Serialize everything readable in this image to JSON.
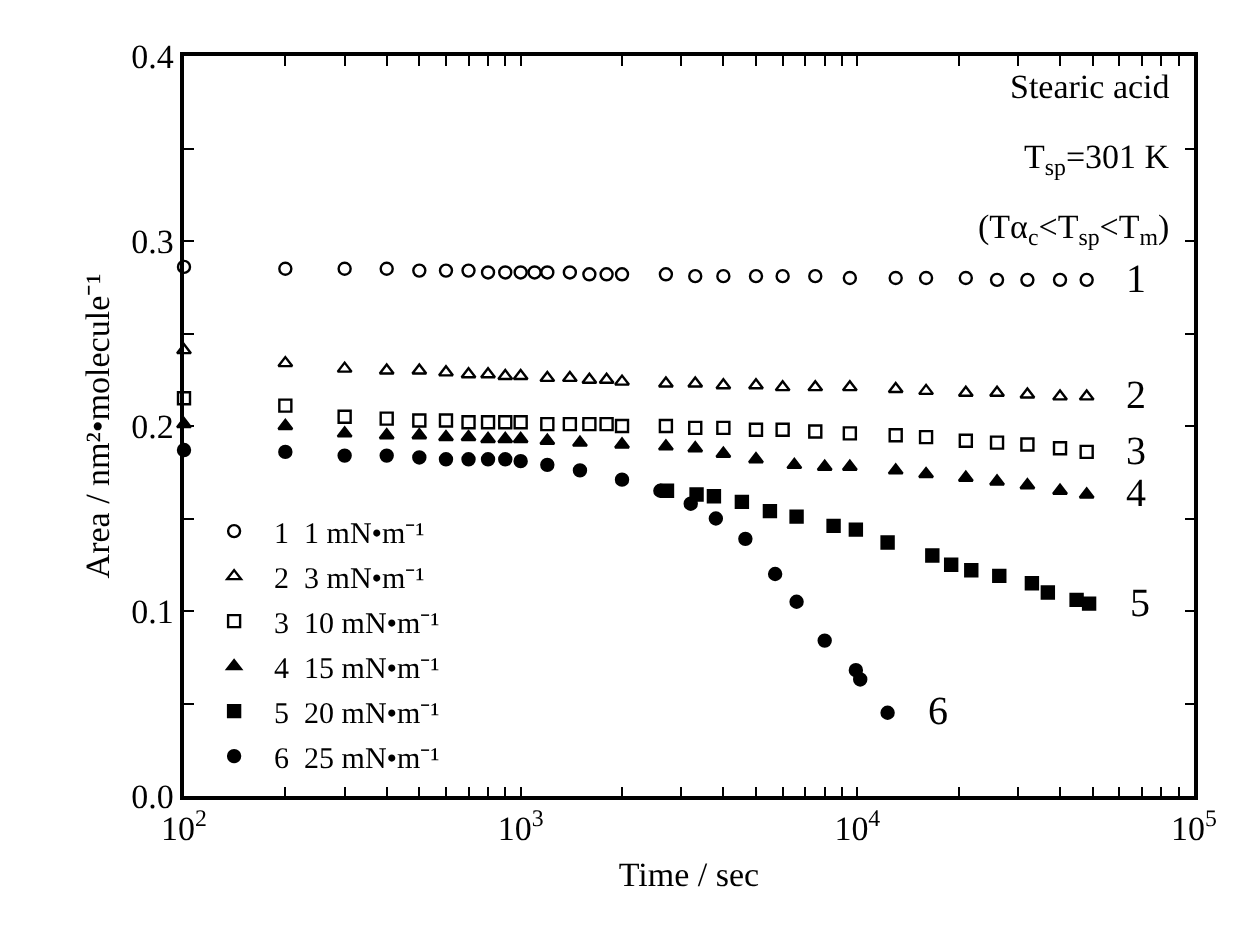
{
  "chart_data": {
    "type": "scatter",
    "xlabel": "Time / sec",
    "ylabel": "Area / nm²•molecule⁻¹",
    "log": "x",
    "xlim": [
      100,
      100000
    ],
    "xticks": [
      {
        "value": 100,
        "label": "10$^{2}$"
      },
      {
        "value": 200,
        "label": null
      },
      {
        "value": 300,
        "label": null
      },
      {
        "value": 400,
        "label": null
      },
      {
        "value": 500,
        "label": null
      },
      {
        "value": 600,
        "label": null
      },
      {
        "value": 700,
        "label": null
      },
      {
        "value": 800,
        "label": null
      },
      {
        "value": 900,
        "label": null
      },
      {
        "value": 1000,
        "label": "10$^{3}$"
      },
      {
        "value": 2000,
        "label": null
      },
      {
        "value": 3000,
        "label": null
      },
      {
        "value": 4000,
        "label": null
      },
      {
        "value": 5000,
        "label": null
      },
      {
        "value": 6000,
        "label": null
      },
      {
        "value": 7000,
        "label": null
      },
      {
        "value": 8000,
        "label": null
      },
      {
        "value": 9000,
        "label": null
      },
      {
        "value": 10000,
        "label": "10$^{4}$"
      },
      {
        "value": 20000,
        "label": null
      },
      {
        "value": 30000,
        "label": null
      },
      {
        "value": 40000,
        "label": null
      },
      {
        "value": 50000,
        "label": null
      },
      {
        "value": 60000,
        "label": null
      },
      {
        "value": 70000,
        "label": null
      },
      {
        "value": 80000,
        "label": null
      },
      {
        "value": 90000,
        "label": null
      },
      {
        "value": 100000,
        "label": "10$^{5}$"
      }
    ],
    "ylim": [
      0,
      0.4
    ],
    "yticks": [
      {
        "value": 0,
        "label": "0.0"
      },
      {
        "value": 0.05,
        "label": null
      },
      0.1,
      {
        "value": 0.15,
        "label": null
      },
      0.2,
      {
        "value": 0.25,
        "label": null
      },
      0.3,
      {
        "value": 0.35,
        "label": null
      },
      0.4
    ],
    "legend": "bottom left",
    "series": [
      {
        "name": "1  1 mN•m⁻¹",
        "color": "#000000",
        "marker": "circle-open",
        "x": [
          100,
          200,
          300,
          400,
          500,
          600,
          700,
          800,
          900,
          1000,
          1100,
          1200,
          1400,
          1600,
          1800,
          2000,
          2700,
          3300,
          4000,
          5000,
          6000,
          7500,
          9500,
          13000,
          16000,
          21000,
          26000,
          32000,
          40000,
          48000
        ],
        "values": [
          0.286,
          0.285,
          0.285,
          0.285,
          0.284,
          0.284,
          0.284,
          0.283,
          0.283,
          0.283,
          0.283,
          0.283,
          0.283,
          0.282,
          0.282,
          0.282,
          0.282,
          0.281,
          0.281,
          0.281,
          0.281,
          0.281,
          0.28,
          0.28,
          0.28,
          0.28,
          0.279,
          0.279,
          0.279,
          0.279
        ]
      },
      {
        "name": "2  3 mN•m⁻¹",
        "color": "#000000",
        "marker": "triangle-open",
        "x": [
          100,
          200,
          300,
          400,
          500,
          600,
          700,
          800,
          900,
          1000,
          1200,
          1400,
          1600,
          1800,
          2000,
          2700,
          3300,
          4000,
          5000,
          6000,
          7500,
          9500,
          13000,
          16000,
          21000,
          26000,
          32000,
          40000,
          48000
        ],
        "values": [
          0.241,
          0.234,
          0.231,
          0.23,
          0.23,
          0.229,
          0.228,
          0.228,
          0.227,
          0.227,
          0.226,
          0.226,
          0.225,
          0.225,
          0.224,
          0.223,
          0.223,
          0.222,
          0.222,
          0.221,
          0.221,
          0.221,
          0.22,
          0.219,
          0.218,
          0.218,
          0.217,
          0.216,
          0.216
        ]
      },
      {
        "name": "3  10 mN•m⁻¹",
        "color": "#000000",
        "marker": "square-open",
        "x": [
          100,
          200,
          300,
          400,
          500,
          600,
          700,
          800,
          900,
          1000,
          1200,
          1400,
          1600,
          1800,
          2000,
          2700,
          3300,
          4000,
          5000,
          6000,
          7500,
          9500,
          13000,
          16000,
          21000,
          26000,
          32000,
          40000,
          48000
        ],
        "values": [
          0.215,
          0.211,
          0.205,
          0.204,
          0.203,
          0.203,
          0.202,
          0.202,
          0.202,
          0.202,
          0.201,
          0.201,
          0.201,
          0.201,
          0.2,
          0.2,
          0.199,
          0.199,
          0.198,
          0.198,
          0.197,
          0.196,
          0.195,
          0.194,
          0.192,
          0.191,
          0.19,
          0.188,
          0.186
        ]
      },
      {
        "name": "4  15 mN•m⁻¹",
        "color": "#000000",
        "marker": "triangle",
        "x": [
          100,
          200,
          300,
          400,
          500,
          600,
          700,
          800,
          900,
          1000,
          1200,
          1500,
          2000,
          2700,
          3300,
          4000,
          5000,
          6500,
          8000,
          9500,
          13000,
          16000,
          21000,
          26000,
          32000,
          40000,
          48000
        ],
        "values": [
          0.201,
          0.2,
          0.196,
          0.195,
          0.195,
          0.194,
          0.194,
          0.193,
          0.193,
          0.193,
          0.192,
          0.191,
          0.19,
          0.189,
          0.188,
          0.185,
          0.182,
          0.179,
          0.178,
          0.178,
          0.176,
          0.174,
          0.172,
          0.17,
          0.168,
          0.165,
          0.163
        ]
      },
      {
        "name": "5  20 mN•m⁻¹",
        "color": "#000000",
        "marker": "square",
        "x": [
          2720,
          3330,
          3750,
          4540,
          5500,
          6600,
          8500,
          9900,
          12300,
          16700,
          19000,
          21800,
          26400,
          33000,
          36800,
          44800,
          48800
        ],
        "values": [
          0.165,
          0.163,
          0.162,
          0.159,
          0.154,
          0.151,
          0.146,
          0.144,
          0.137,
          0.13,
          0.125,
          0.122,
          0.119,
          0.115,
          0.11,
          0.106,
          0.104
        ]
      },
      {
        "name": "6  25 mN•m⁻¹",
        "color": "#000000",
        "marker": "circle",
        "x": [
          100,
          200,
          300,
          400,
          500,
          600,
          700,
          800,
          900,
          1000,
          1200,
          1500,
          2000,
          2600,
          3200,
          3800,
          4650,
          5700,
          6600,
          8000,
          9900,
          10200,
          12300
        ],
        "values": [
          0.187,
          0.186,
          0.184,
          0.184,
          0.183,
          0.182,
          0.182,
          0.182,
          0.182,
          0.181,
          0.179,
          0.176,
          0.171,
          0.165,
          0.158,
          0.15,
          0.139,
          0.12,
          0.105,
          0.084,
          0.068,
          0.063,
          0.045
        ]
      }
    ],
    "annotations": [
      "Stearic acid",
      "T$_{sp}$=301 K",
      "(Tα$_{c}$<T$_{sp}$<T$_{m}$)",
      "1",
      "2",
      "3",
      "4",
      "5",
      "6"
    ]
  }
}
